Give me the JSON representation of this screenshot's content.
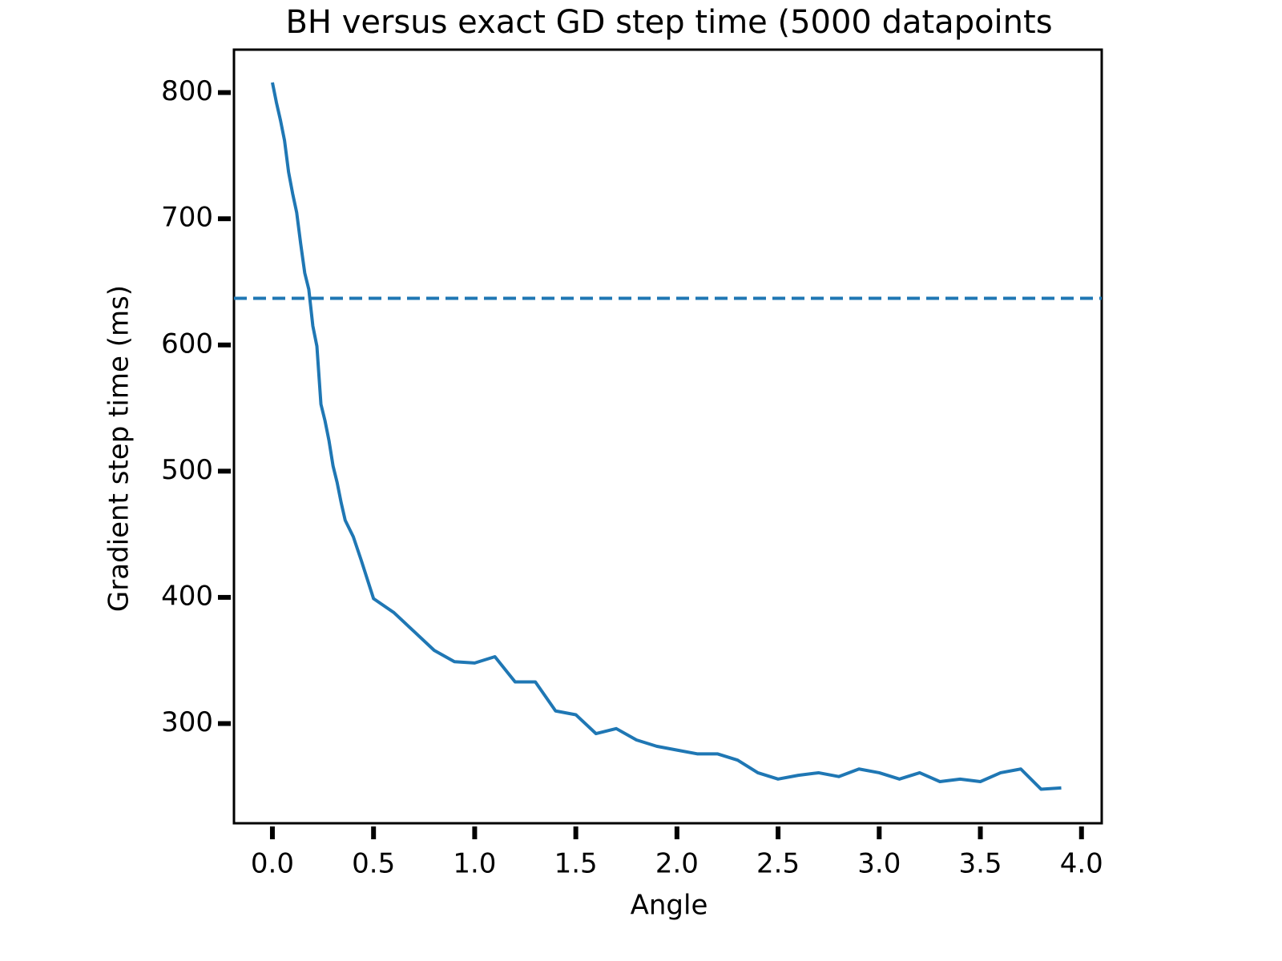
{
  "chart_data": {
    "type": "line",
    "title": "BH versus exact GD step time (5000 datapoints",
    "xlabel": "Angle",
    "ylabel": "Gradient step time (ms)",
    "x": [
      0,
      0.02,
      0.04,
      0.06,
      0.08,
      0.1,
      0.12,
      0.14,
      0.16,
      0.18,
      0.2,
      0.22,
      0.24,
      0.26,
      0.28,
      0.3,
      0.32,
      0.34,
      0.36,
      0.4,
      0.44,
      0.5,
      0.6,
      0.7,
      0.8,
      0.9,
      1.0,
      1.1,
      1.2,
      1.3,
      1.4,
      1.5,
      1.6,
      1.7,
      1.8,
      1.9,
      2.0,
      2.1,
      2.2,
      2.3,
      2.4,
      2.5,
      2.6,
      2.7,
      2.8,
      2.9,
      3.0,
      3.1,
      3.2,
      3.3,
      3.4,
      3.5,
      3.6,
      3.7,
      3.8,
      3.9
    ],
    "series": [
      {
        "color": "#1f77b4",
        "values": [
          808,
          792,
          778,
          762,
          737,
          720,
          705,
          680,
          657,
          644,
          615,
          599,
          553,
          540,
          524,
          504,
          491,
          475,
          461,
          448,
          429,
          399,
          388,
          373,
          358,
          349,
          348,
          353,
          333,
          333,
          310,
          307,
          292,
          296,
          287,
          282,
          279,
          276,
          276,
          271,
          261,
          256,
          259,
          261,
          258,
          264,
          261,
          256,
          261,
          254,
          256,
          254,
          261,
          264,
          248,
          249
        ]
      }
    ],
    "reference_line": {
      "value": 637,
      "color": "#1f77b4",
      "style": "dashed"
    },
    "xlim": [
      -0.19,
      4.1
    ],
    "ylim": [
      221,
      834
    ],
    "xticks": [
      {
        "value": 0,
        "label": "0.0"
      },
      {
        "value": 0.5,
        "label": "0.5"
      },
      {
        "value": 1,
        "label": "1.0"
      },
      {
        "value": 1.5,
        "label": "1.5"
      },
      {
        "value": 2,
        "label": "2.0"
      },
      {
        "value": 2.5,
        "label": "2.5"
      },
      {
        "value": 3,
        "label": "3.0"
      },
      {
        "value": 3.5,
        "label": "3.5"
      },
      {
        "value": 4,
        "label": "4.0"
      }
    ],
    "yticks": [
      300,
      400,
      500,
      600,
      700,
      800
    ],
    "grid": false
  }
}
